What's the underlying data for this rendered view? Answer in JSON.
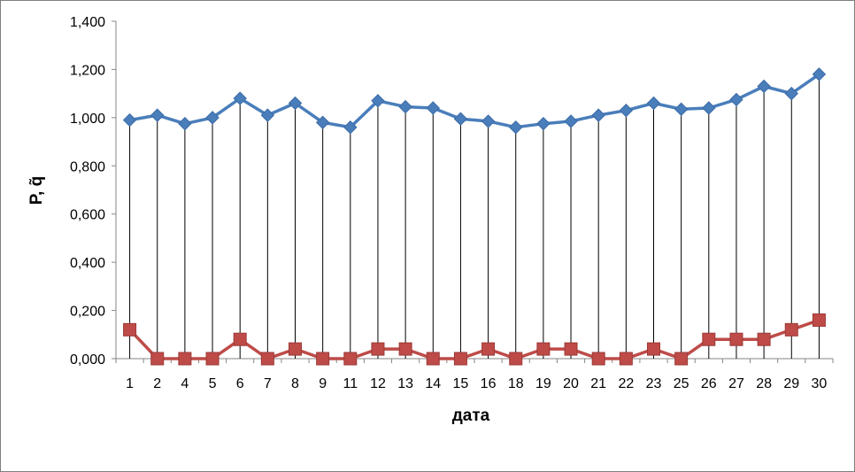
{
  "chart_data": {
    "type": "line",
    "title": "",
    "xlabel": "дата",
    "ylabel": "P, q̃",
    "ylim": [
      0,
      1.4
    ],
    "yticks": [
      "0,000",
      "0,200",
      "0,400",
      "0,600",
      "0,800",
      "1,000",
      "1,200",
      "1,400"
    ],
    "grid": false,
    "legend": "none",
    "drop_lines": true,
    "categories": [
      "1",
      "2",
      "4",
      "5",
      "6",
      "7",
      "8",
      "9",
      "11",
      "12",
      "13",
      "14",
      "15",
      "16",
      "18",
      "19",
      "20",
      "21",
      "22",
      "23",
      "25",
      "26",
      "27",
      "28",
      "29",
      "30"
    ],
    "series": [
      {
        "color": "#4a7ebb",
        "marker": "diamond",
        "values": [
          0.99,
          1.01,
          0.975,
          1.0,
          1.08,
          1.01,
          1.06,
          0.98,
          0.96,
          1.07,
          1.045,
          1.04,
          0.995,
          0.985,
          0.96,
          0.975,
          0.985,
          1.01,
          1.03,
          1.06,
          1.035,
          1.04,
          1.075,
          1.13,
          1.1,
          1.18
        ]
      },
      {
        "color": "#be4b48",
        "marker": "square",
        "values": [
          0.12,
          0.0,
          0.0,
          0.0,
          0.08,
          0.0,
          0.04,
          0.0,
          0.0,
          0.04,
          0.04,
          0.0,
          0.0,
          0.04,
          0.0,
          0.04,
          0.04,
          0.0,
          0.0,
          0.04,
          0.0,
          0.08,
          0.08,
          0.08,
          0.12,
          0.16
        ]
      }
    ]
  }
}
